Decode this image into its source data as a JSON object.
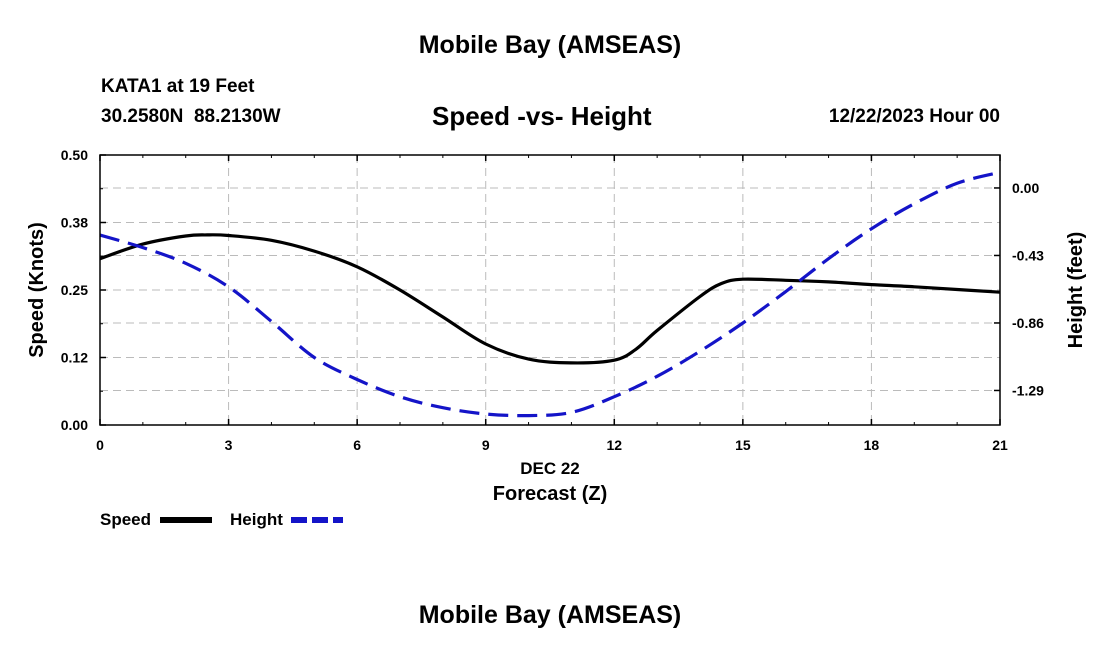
{
  "header": {
    "title": "Mobile Bay (AMSEAS)",
    "station": "KATA1 at 19 Feet",
    "coords": "30.2580N  88.2130W",
    "subtitle": "Speed -vs- Height",
    "datetime": "12/22/2023 Hour 00"
  },
  "footer": {
    "title": "Mobile Bay (AMSEAS)"
  },
  "legend": {
    "speed_label": "Speed",
    "height_label": "Height"
  },
  "colors": {
    "speed": "#000000",
    "height": "#1414c8",
    "grid": "#bbbbbb"
  },
  "chart_data": {
    "type": "line",
    "title": "Speed -vs- Height",
    "xlabel": "Forecast (Z)",
    "x_sublabel": "DEC 22",
    "ylabel": "Speed (Knots)",
    "y2label": "Height (feet)",
    "xlim": [
      0,
      21
    ],
    "ylim": [
      0,
      0.5
    ],
    "y2lim": [
      -1.51,
      0.21
    ],
    "x_ticks": [
      0,
      3,
      6,
      9,
      12,
      15,
      18,
      21
    ],
    "y_ticks": [
      0.0,
      0.125,
      0.25,
      0.375,
      0.5
    ],
    "y_tick_labels": [
      "0.00",
      "0.12",
      "0.25",
      "0.38",
      "0.50"
    ],
    "y2_ticks": [
      0.0,
      -0.43,
      -0.86,
      -1.29
    ],
    "y2_tick_labels": [
      "0.00",
      "-0.43",
      "-0.86",
      "-1.29"
    ],
    "grid": true,
    "series": [
      {
        "name": "Speed",
        "axis": "left",
        "style": "solid",
        "x": [
          0,
          1,
          2,
          2.5,
          3,
          4,
          5,
          6,
          7,
          8,
          9,
          10,
          11,
          12,
          12.5,
          13,
          14,
          14.5,
          15,
          16,
          17,
          18,
          19,
          20,
          21
        ],
        "y": [
          0.308,
          0.335,
          0.35,
          0.352,
          0.351,
          0.342,
          0.322,
          0.293,
          0.25,
          0.2,
          0.15,
          0.122,
          0.115,
          0.12,
          0.14,
          0.175,
          0.238,
          0.262,
          0.27,
          0.268,
          0.265,
          0.26,
          0.256,
          0.251,
          0.246
        ]
      },
      {
        "name": "Height",
        "axis": "right",
        "style": "dashed",
        "x": [
          0,
          1,
          2,
          3,
          4,
          5,
          6,
          7,
          8,
          9,
          10,
          11,
          12,
          13,
          14,
          15,
          16,
          17,
          18,
          19,
          20,
          21
        ],
        "y": [
          -0.3,
          -0.38,
          -0.48,
          -0.63,
          -0.85,
          -1.08,
          -1.22,
          -1.33,
          -1.4,
          -1.44,
          -1.45,
          -1.43,
          -1.33,
          -1.2,
          -1.04,
          -0.86,
          -0.66,
          -0.45,
          -0.26,
          -0.1,
          0.03,
          0.1
        ]
      }
    ]
  }
}
